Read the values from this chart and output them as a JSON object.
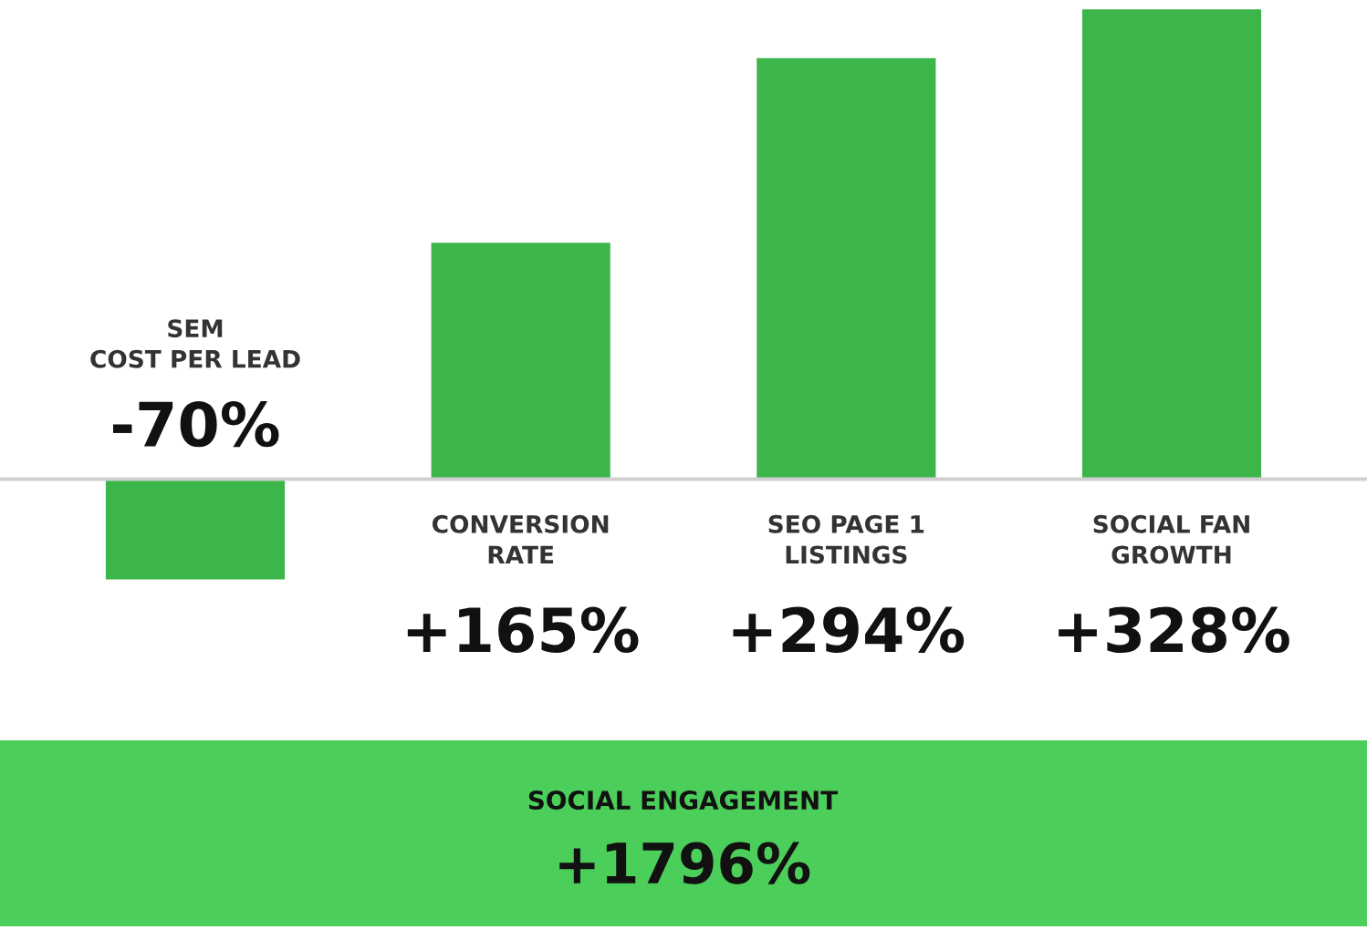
{
  "chart_data": {
    "type": "bar",
    "categories": [
      "SEM\nCOST PER LEAD",
      "CONVERSION\nRATE",
      "SEO PAGE 1\nLISTINGS",
      "SOCIAL FAN\nGROWTH"
    ],
    "values": [
      -70,
      165,
      294,
      328
    ],
    "value_labels": [
      "-70%",
      "+165%",
      "+294%",
      "+328%"
    ],
    "color": "#3cb54a",
    "annotations": [
      "SOCIAL ENGAGEMENT",
      "+1796%"
    ]
  }
}
